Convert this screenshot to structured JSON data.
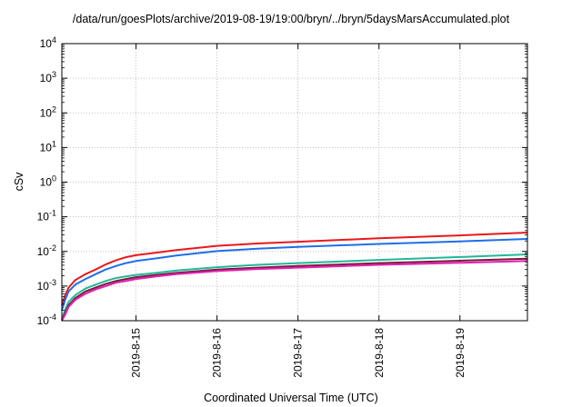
{
  "chart_data": {
    "type": "line",
    "title": "/data/run/goesPlots/archive/2019-08-19/19:00/bryn/../bryn/5daysMarsAccumulated.plot",
    "xlabel": "Coordinated Universal Time (UTC)",
    "ylabel": "cSv",
    "yscale": "log",
    "ylim": [
      0.0001,
      10000
    ],
    "xlim": [
      "2019-08-14 02:00",
      "2019-08-19 20:00"
    ],
    "y_ticks": [
      {
        "base": "10",
        "exp": "-4",
        "value": 0.0001
      },
      {
        "base": "10",
        "exp": "-3",
        "value": 0.001
      },
      {
        "base": "10",
        "exp": "-2",
        "value": 0.01
      },
      {
        "base": "10",
        "exp": "-1",
        "value": 0.1
      },
      {
        "base": "10",
        "exp": "0",
        "value": 1
      },
      {
        "base": "10",
        "exp": "1",
        "value": 10
      },
      {
        "base": "10",
        "exp": "2",
        "value": 100
      },
      {
        "base": "10",
        "exp": "3",
        "value": 1000
      },
      {
        "base": "10",
        "exp": "4",
        "value": 10000
      }
    ],
    "x_ticks": [
      {
        "label": "2019-8-15",
        "value": "2019-08-15 00:00"
      },
      {
        "label": "2019-8-16",
        "value": "2019-08-16 00:00"
      },
      {
        "label": "2019-8-17",
        "value": "2019-08-17 00:00"
      },
      {
        "label": "2019-8-18",
        "value": "2019-08-18 00:00"
      },
      {
        "label": "2019-8-19",
        "value": "2019-08-19 00:00"
      }
    ],
    "grid": true,
    "series": [
      {
        "color": "#e8191b",
        "x": [
          "2019-08-14 02:00",
          "2019-08-14 03:00",
          "2019-08-14 04:00",
          "2019-08-14 06:00",
          "2019-08-14 09:00",
          "2019-08-14 12:00",
          "2019-08-14 15:00",
          "2019-08-14 18:00",
          "2019-08-14 21:00",
          "2019-08-15 00:00",
          "2019-08-15 06:00",
          "2019-08-15 12:00",
          "2019-08-16 00:00",
          "2019-08-16 12:00",
          "2019-08-17 00:00",
          "2019-08-18 00:00",
          "2019-08-19 00:00",
          "2019-08-19 20:00"
        ],
        "y": [
          0.00028,
          0.00055,
          0.0009,
          0.0015,
          0.0022,
          0.003,
          0.0042,
          0.0055,
          0.0068,
          0.0078,
          0.0092,
          0.011,
          0.0145,
          0.017,
          0.019,
          0.024,
          0.029,
          0.035
        ]
      },
      {
        "color": "#1f6ee8",
        "x": [
          "2019-08-14 02:00",
          "2019-08-14 03:00",
          "2019-08-14 04:00",
          "2019-08-14 06:00",
          "2019-08-14 09:00",
          "2019-08-14 12:00",
          "2019-08-14 15:00",
          "2019-08-14 18:00",
          "2019-08-14 21:00",
          "2019-08-15 00:00",
          "2019-08-15 06:00",
          "2019-08-15 12:00",
          "2019-08-16 00:00",
          "2019-08-16 12:00",
          "2019-08-17 00:00",
          "2019-08-18 00:00",
          "2019-08-19 00:00",
          "2019-08-19 20:00"
        ],
        "y": [
          0.0002,
          0.0004,
          0.0007,
          0.0011,
          0.0016,
          0.0022,
          0.003,
          0.0038,
          0.0046,
          0.0053,
          0.0063,
          0.0076,
          0.0102,
          0.012,
          0.0135,
          0.0165,
          0.0195,
          0.023
        ]
      },
      {
        "color": "#20b89a",
        "x": [
          "2019-08-14 02:00",
          "2019-08-14 03:00",
          "2019-08-14 04:00",
          "2019-08-14 06:00",
          "2019-08-14 09:00",
          "2019-08-14 12:00",
          "2019-08-14 15:00",
          "2019-08-14 18:00",
          "2019-08-14 21:00",
          "2019-08-15 00:00",
          "2019-08-15 06:00",
          "2019-08-15 12:00",
          "2019-08-16 00:00",
          "2019-08-16 12:00",
          "2019-08-17 00:00",
          "2019-08-18 00:00",
          "2019-08-19 00:00",
          "2019-08-19 20:00"
        ],
        "y": [
          0.00011,
          0.00021,
          0.00035,
          0.00055,
          0.00085,
          0.0011,
          0.0014,
          0.0017,
          0.0019,
          0.0021,
          0.0024,
          0.0028,
          0.0035,
          0.0041,
          0.0046,
          0.0057,
          0.0069,
          0.0082
        ]
      },
      {
        "color": "#7a1a3a",
        "x": [
          "2019-08-14 02:00",
          "2019-08-14 03:00",
          "2019-08-14 04:00",
          "2019-08-14 06:00",
          "2019-08-14 09:00",
          "2019-08-14 12:00",
          "2019-08-14 15:00",
          "2019-08-14 18:00",
          "2019-08-14 21:00",
          "2019-08-15 00:00",
          "2019-08-15 06:00",
          "2019-08-15 12:00",
          "2019-08-16 00:00",
          "2019-08-16 12:00",
          "2019-08-17 00:00",
          "2019-08-18 00:00",
          "2019-08-19 00:00",
          "2019-08-19 20:00"
        ],
        "y": [
          0.0001,
          0.00017,
          0.00028,
          0.00045,
          0.0007,
          0.0009,
          0.00115,
          0.0014,
          0.0016,
          0.0018,
          0.0021,
          0.0024,
          0.003,
          0.0034,
          0.0038,
          0.0046,
          0.0054,
          0.0062
        ]
      },
      {
        "color": "#e020b0",
        "x": [
          "2019-08-14 02:00",
          "2019-08-14 03:00",
          "2019-08-14 04:00",
          "2019-08-14 06:00",
          "2019-08-14 09:00",
          "2019-08-14 12:00",
          "2019-08-14 15:00",
          "2019-08-14 18:00",
          "2019-08-14 21:00",
          "2019-08-15 00:00",
          "2019-08-15 06:00",
          "2019-08-15 12:00",
          "2019-08-16 00:00",
          "2019-08-16 12:00",
          "2019-08-17 00:00",
          "2019-08-18 00:00",
          "2019-08-19 00:00",
          "2019-08-19 20:00"
        ],
        "y": [
          9e-05,
          0.00015,
          0.00025,
          0.0004,
          0.0006,
          0.0008,
          0.001,
          0.00125,
          0.0014,
          0.0016,
          0.0019,
          0.0022,
          0.0027,
          0.0031,
          0.0034,
          0.0041,
          0.0047,
          0.0053
        ]
      }
    ]
  }
}
